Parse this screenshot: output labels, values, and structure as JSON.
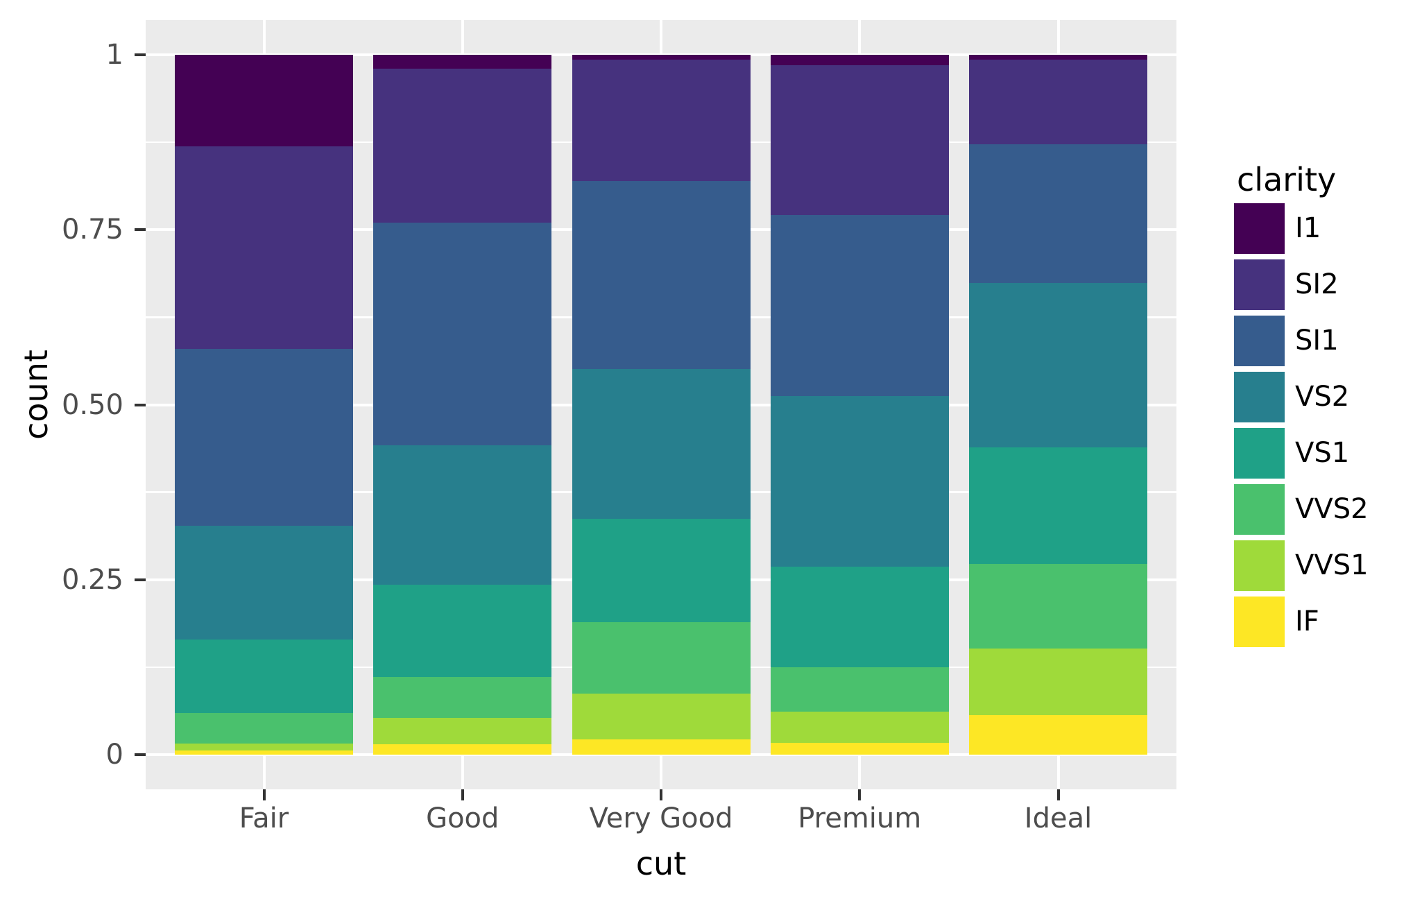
{
  "chart_data": {
    "type": "bar",
    "variant": "stacked-filled",
    "title": "",
    "xlabel": "cut",
    "ylabel": "count",
    "categories": [
      "Fair",
      "Good",
      "Very Good",
      "Premium",
      "Ideal"
    ],
    "series": [
      {
        "name": "I1",
        "color": "#440154",
        "values": [
          0.1304,
          0.0196,
          0.007,
          0.0149,
          0.0068
        ]
      },
      {
        "name": "SI2",
        "color": "#46327E",
        "values": [
          0.2894,
          0.2203,
          0.1738,
          0.2138,
          0.1206
        ]
      },
      {
        "name": "SI1",
        "color": "#365C8D",
        "values": [
          0.2534,
          0.318,
          0.2682,
          0.2592,
          0.1987
        ]
      },
      {
        "name": "VS2",
        "color": "#277F8E",
        "values": [
          0.1621,
          0.1994,
          0.2144,
          0.2434,
          0.2353
        ]
      },
      {
        "name": "VS1",
        "color": "#1FA187",
        "values": [
          0.1056,
          0.1321,
          0.1469,
          0.1442,
          0.1665
        ]
      },
      {
        "name": "VVS2",
        "color": "#4AC16D",
        "values": [
          0.0429,
          0.0583,
          0.1022,
          0.0631,
          0.1209
        ]
      },
      {
        "name": "VVS1",
        "color": "#9FDA3A",
        "values": [
          0.0106,
          0.0379,
          0.0653,
          0.0447,
          0.095
        ]
      },
      {
        "name": "IF",
        "color": "#FDE725",
        "values": [
          0.0056,
          0.0145,
          0.0222,
          0.0167,
          0.0562
        ]
      }
    ],
    "ylim": [
      0,
      1
    ],
    "y_ticks": [
      {
        "value": 1,
        "label": "1"
      },
      {
        "value": 0.75,
        "label": "0.75"
      },
      {
        "value": 0.5,
        "label": "0.50"
      },
      {
        "value": 0.25,
        "label": "0.25"
      },
      {
        "value": 0,
        "label": "0"
      }
    ],
    "y_minor_ticks": [
      0.875,
      0.625,
      0.375,
      0.125
    ],
    "grid": true,
    "legend": {
      "title": "clarity",
      "position": "right"
    },
    "colors": {
      "panel_background": "#EBEBEB",
      "gridline": "#FFFFFF",
      "tick_mark": "#333333",
      "tick_label": "#4D4D4D",
      "axis_title": "#000000"
    }
  }
}
